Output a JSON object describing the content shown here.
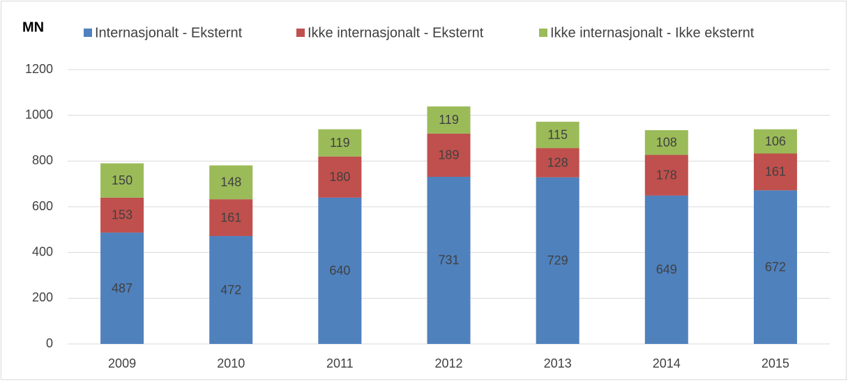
{
  "chart_data": {
    "type": "bar",
    "stacked": true,
    "y_label": "MN",
    "categories": [
      "2009",
      "2010",
      "2011",
      "2012",
      "2013",
      "2014",
      "2015"
    ],
    "series": [
      {
        "name": "Internasjonalt - Eksternt",
        "color": "#4f81bd",
        "values": [
          487,
          472,
          640,
          731,
          729,
          649,
          672
        ]
      },
      {
        "name": "Ikke internasjonalt - Eksternt",
        "color": "#c0504d",
        "values": [
          153,
          161,
          180,
          189,
          128,
          178,
          161
        ]
      },
      {
        "name": "Ikke internasjonalt - Ikke eksternt",
        "color": "#9bbb59",
        "values": [
          150,
          148,
          119,
          119,
          115,
          108,
          106
        ]
      }
    ],
    "ylim": [
      0,
      1200
    ],
    "yticks": [
      0,
      200,
      400,
      600,
      800,
      1000,
      1200
    ],
    "grid": true,
    "legend": "top"
  }
}
